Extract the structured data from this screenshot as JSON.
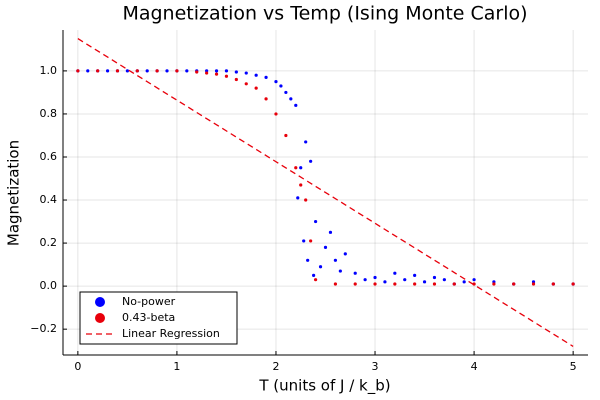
{
  "chart_data": {
    "type": "scatter",
    "title": "Magnetization vs Temp (Ising Monte Carlo)",
    "x_label": "T (units of J / k_b)",
    "y_label": "Magnetization",
    "xlim": [
      -0.15,
      5.15
    ],
    "ylim": [
      -0.32,
      1.19
    ],
    "xticks": [
      0,
      1,
      2,
      3,
      4,
      5
    ],
    "yticks": [
      {
        "value": -0.2,
        "label": "−0.2"
      },
      {
        "value": 0,
        "label": "0.0"
      },
      0.2,
      0.4,
      0.6,
      0.8,
      {
        "value": 1,
        "label": "1.0"
      }
    ],
    "grid": true,
    "legend_position": "bottom-left",
    "series": [
      {
        "name": "No-power",
        "color": "#0000ff",
        "marker": "circle",
        "x": [
          0,
          0.1,
          0.2,
          0.3,
          0.4,
          0.5,
          0.6,
          0.7,
          0.8,
          0.9,
          1.0,
          1.1,
          1.2,
          1.3,
          1.4,
          1.5,
          1.6,
          1.7,
          1.8,
          1.9,
          2.0,
          2.05,
          2.1,
          2.15,
          2.2,
          2.22,
          2.25,
          2.28,
          2.3,
          2.32,
          2.35,
          2.38,
          2.4,
          2.45,
          2.5,
          2.55,
          2.6,
          2.65,
          2.7,
          2.8,
          2.9,
          3.0,
          3.1,
          3.2,
          3.3,
          3.4,
          3.5,
          3.6,
          3.7,
          3.8,
          3.9,
          4.0,
          4.2,
          4.4,
          4.6,
          4.8,
          5.0
        ],
        "values": [
          1,
          1,
          1,
          1,
          1,
          1,
          1,
          1,
          1,
          1,
          1,
          1,
          1,
          1,
          1,
          1,
          0.995,
          0.99,
          0.98,
          0.97,
          0.95,
          0.93,
          0.9,
          0.87,
          0.84,
          0.41,
          0.55,
          0.21,
          0.67,
          0.12,
          0.58,
          0.05,
          0.3,
          0.09,
          0.18,
          0.25,
          0.12,
          0.07,
          0.15,
          0.06,
          0.03,
          0.04,
          0.02,
          0.06,
          0.03,
          0.05,
          0.02,
          0.04,
          0.03,
          0.01,
          0.02,
          0.03,
          0.02,
          0.01,
          0.02,
          0.01,
          0.01
        ]
      },
      {
        "name": "0.43-beta",
        "color": "#e8000b",
        "marker": "circle",
        "x": [
          0,
          0.2,
          0.4,
          0.6,
          0.8,
          1.0,
          1.2,
          1.3,
          1.4,
          1.5,
          1.6,
          1.7,
          1.8,
          1.9,
          2.0,
          2.1,
          2.2,
          2.25,
          2.3,
          2.35,
          2.4,
          2.6,
          2.8,
          3.0,
          3.2,
          3.4,
          3.6,
          3.8,
          4.0,
          4.2,
          4.4,
          4.6,
          4.8,
          5.0
        ],
        "values": [
          1,
          1,
          1,
          1,
          1,
          1,
          0.995,
          0.99,
          0.985,
          0.975,
          0.96,
          0.94,
          0.92,
          0.87,
          0.8,
          0.7,
          0.55,
          0.47,
          0.4,
          0.21,
          0.03,
          0.01,
          0.01,
          0.01,
          0.01,
          0.01,
          0.01,
          0.01,
          0.01,
          0.01,
          0.01,
          0.01,
          0.01,
          0.01
        ]
      },
      {
        "name": "Linear Regression",
        "color": "#e8000b",
        "marker": "dashed-line",
        "x": [
          0,
          5
        ],
        "values": [
          1.15,
          -0.28
        ]
      }
    ]
  }
}
